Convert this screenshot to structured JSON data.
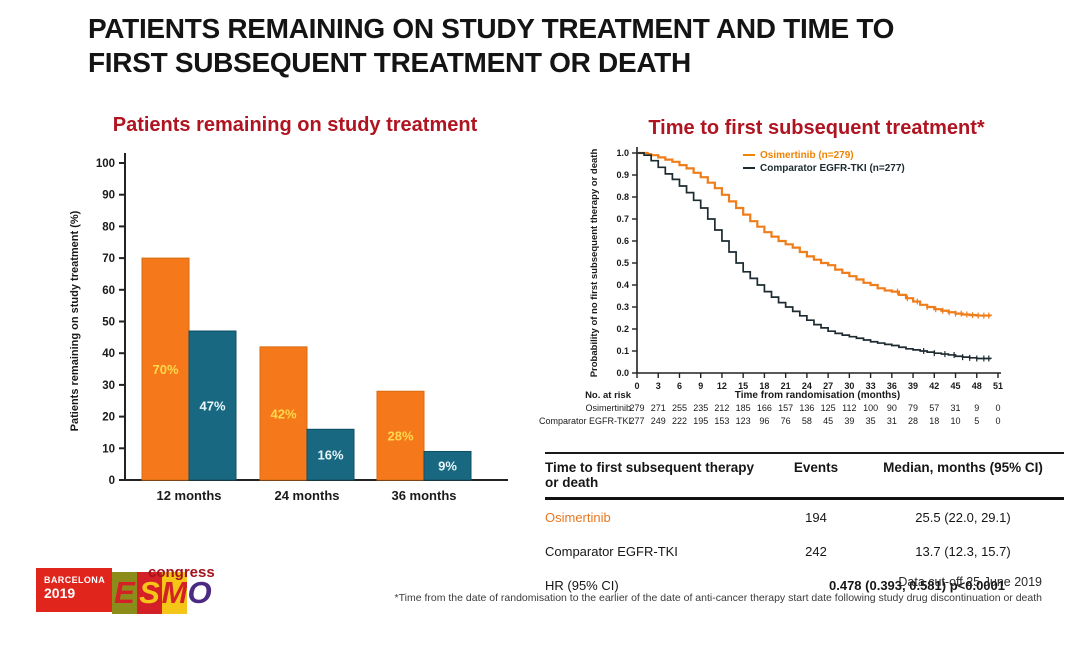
{
  "slide": {
    "title_line1": "PATIENTS REMAINING ON STUDY TREATMENT AND TIME TO",
    "title_line2": "FIRST SUBSEQUENT TREATMENT OR DEATH"
  },
  "colors": {
    "accent_red": "#b01421",
    "orange": "#f5791a",
    "teal": "#176880",
    "km_orange": "#ef7d1a",
    "km_black": "#1d2b30"
  },
  "chart_data": [
    {
      "type": "bar",
      "title": "Patients remaining on study treatment",
      "ylabel": "Patients remaining on study treatment (%)",
      "xlabel": "",
      "ylim": [
        0,
        100
      ],
      "ytick_step": 10,
      "grid": false,
      "categories": [
        "12 months",
        "24 months",
        "36 months"
      ],
      "series": [
        {
          "name": "Osimertinib",
          "color": "#f5791a",
          "edge": "#d86a10",
          "values": [
            70,
            42,
            28
          ],
          "label_color": "#ffd84d"
        },
        {
          "name": "Comparator EGFR-TKI",
          "color": "#176880",
          "edge": "#0f4f63",
          "values": [
            47,
            16,
            9
          ],
          "label_color": "#eaf6fa"
        }
      ]
    },
    {
      "type": "line",
      "variant": "kaplan-meier",
      "title": "Time to first subsequent treatment*",
      "xlabel": "Time from randomisation (months)",
      "ylabel": "Probability of no first subsequent therapy or death",
      "xlim": [
        0,
        51
      ],
      "xtick_step": 3,
      "ylim": [
        0,
        1
      ],
      "ytick_step": 0.1,
      "grid": false,
      "legend_position": "upper-right-inside",
      "legend": [
        {
          "label": "Osimertinib (n=279)",
          "color": "#f08300"
        },
        {
          "label": "Comparator EGFR-TKI (n=277)",
          "color": "#1d2b30"
        }
      ],
      "series": [
        {
          "name": "Osimertinib",
          "color": "#ef7d1a",
          "points": [
            [
              0,
              1.0
            ],
            [
              1,
              1.0
            ],
            [
              1.5,
              0.995
            ],
            [
              2,
              0.99
            ],
            [
              3,
              0.98
            ],
            [
              4,
              0.97
            ],
            [
              5,
              0.96
            ],
            [
              6,
              0.945
            ],
            [
              7,
              0.93
            ],
            [
              8,
              0.91
            ],
            [
              9,
              0.89
            ],
            [
              10,
              0.865
            ],
            [
              11,
              0.84
            ],
            [
              12,
              0.81
            ],
            [
              13,
              0.78
            ],
            [
              14,
              0.75
            ],
            [
              15,
              0.72
            ],
            [
              16,
              0.69
            ],
            [
              17,
              0.665
            ],
            [
              18,
              0.64
            ],
            [
              19,
              0.62
            ],
            [
              20,
              0.6
            ],
            [
              21,
              0.585
            ],
            [
              22,
              0.57
            ],
            [
              23,
              0.55
            ],
            [
              24,
              0.53
            ],
            [
              25,
              0.515
            ],
            [
              26,
              0.5
            ],
            [
              27,
              0.49
            ],
            [
              28,
              0.47
            ],
            [
              29,
              0.455
            ],
            [
              30,
              0.44
            ],
            [
              31,
              0.425
            ],
            [
              32,
              0.41
            ],
            [
              33,
              0.4
            ],
            [
              34,
              0.385
            ],
            [
              35,
              0.375
            ],
            [
              36,
              0.37
            ],
            [
              37,
              0.355
            ],
            [
              38,
              0.34
            ],
            [
              39,
              0.325
            ],
            [
              40,
              0.31
            ],
            [
              41,
              0.3
            ],
            [
              42,
              0.29
            ],
            [
              43,
              0.283
            ],
            [
              44,
              0.276
            ],
            [
              45,
              0.27
            ],
            [
              46,
              0.266
            ],
            [
              47,
              0.263
            ],
            [
              48,
              0.261
            ],
            [
              50,
              0.26
            ]
          ],
          "censor_marks": [
            36.8,
            38.2,
            39.6,
            41,
            42.2,
            43.2,
            44.1,
            45,
            45.8,
            46.6,
            47.4,
            48.2,
            49,
            49.7
          ]
        },
        {
          "name": "Comparator EGFR-TKI",
          "color": "#1d2b30",
          "points": [
            [
              0,
              1.0
            ],
            [
              1,
              0.99
            ],
            [
              2,
              0.965
            ],
            [
              3,
              0.935
            ],
            [
              4,
              0.905
            ],
            [
              5,
              0.88
            ],
            [
              6,
              0.85
            ],
            [
              7,
              0.82
            ],
            [
              8,
              0.785
            ],
            [
              9,
              0.75
            ],
            [
              10,
              0.7
            ],
            [
              11,
              0.65
            ],
            [
              12,
              0.6
            ],
            [
              13,
              0.55
            ],
            [
              14,
              0.5
            ],
            [
              15,
              0.46
            ],
            [
              16,
              0.43
            ],
            [
              17,
              0.4
            ],
            [
              18,
              0.37
            ],
            [
              19,
              0.345
            ],
            [
              20,
              0.32
            ],
            [
              21,
              0.3
            ],
            [
              22,
              0.28
            ],
            [
              23,
              0.26
            ],
            [
              24,
              0.24
            ],
            [
              25,
              0.22
            ],
            [
              26,
              0.205
            ],
            [
              27,
              0.19
            ],
            [
              28,
              0.18
            ],
            [
              29,
              0.172
            ],
            [
              30,
              0.165
            ],
            [
              31,
              0.158
            ],
            [
              32,
              0.15
            ],
            [
              33,
              0.142
            ],
            [
              34,
              0.136
            ],
            [
              35,
              0.13
            ],
            [
              36,
              0.125
            ],
            [
              37,
              0.117
            ],
            [
              38,
              0.11
            ],
            [
              39,
              0.105
            ],
            [
              40,
              0.1
            ],
            [
              41,
              0.095
            ],
            [
              42,
              0.09
            ],
            [
              43,
              0.086
            ],
            [
              44,
              0.082
            ],
            [
              45,
              0.076
            ],
            [
              46,
              0.072
            ],
            [
              47,
              0.069
            ],
            [
              48,
              0.066
            ],
            [
              50,
              0.065
            ]
          ],
          "censor_marks": [
            40.5,
            42,
            43.5,
            44.8,
            46,
            47,
            48,
            49,
            49.7
          ]
        }
      ],
      "risk_table": {
        "heading": "No. at risk",
        "ticks": [
          0,
          3,
          6,
          9,
          12,
          15,
          18,
          21,
          24,
          27,
          30,
          33,
          36,
          39,
          42,
          45,
          48,
          51
        ],
        "rows": [
          {
            "label": "Osimertinib",
            "values": [
              279,
              271,
              255,
              235,
              212,
              185,
              166,
              157,
              136,
              125,
              112,
              100,
              90,
              79,
              57,
              31,
              9,
              0
            ]
          },
          {
            "label": "Comparator EGFR-TKI",
            "values": [
              277,
              249,
              222,
              195,
              153,
              123,
              96,
              76,
              58,
              45,
              39,
              35,
              31,
              28,
              18,
              10,
              5,
              0
            ]
          }
        ]
      }
    }
  ],
  "summary_table": {
    "headers": [
      "Time to first subsequent therapy or death",
      "Events",
      "Median, months (95% CI)"
    ],
    "rows": [
      {
        "label": "Osimertinib",
        "label_color": "#e87722",
        "events": "194",
        "median": "25.5 (22.0, 29.1)"
      },
      {
        "label": "Comparator EGFR-TKI",
        "events": "242",
        "median": "13.7 (12.3, 15.7)"
      },
      {
        "label": "HR (95% CI)",
        "span_value": "0.478 (0.393, 0.581) p<0.0001"
      }
    ]
  },
  "footer": {
    "data_cutoff": "Data cut-off  25 June 2019",
    "footnote": "*Time from the date of randomisation to the earlier of the date of anti-cancer therapy start date following study drug discontinuation or death"
  },
  "logo": {
    "city": "BARCELONA",
    "year": "2019",
    "letters": [
      "E",
      "S",
      "M",
      "O"
    ],
    "congress": "congress"
  }
}
